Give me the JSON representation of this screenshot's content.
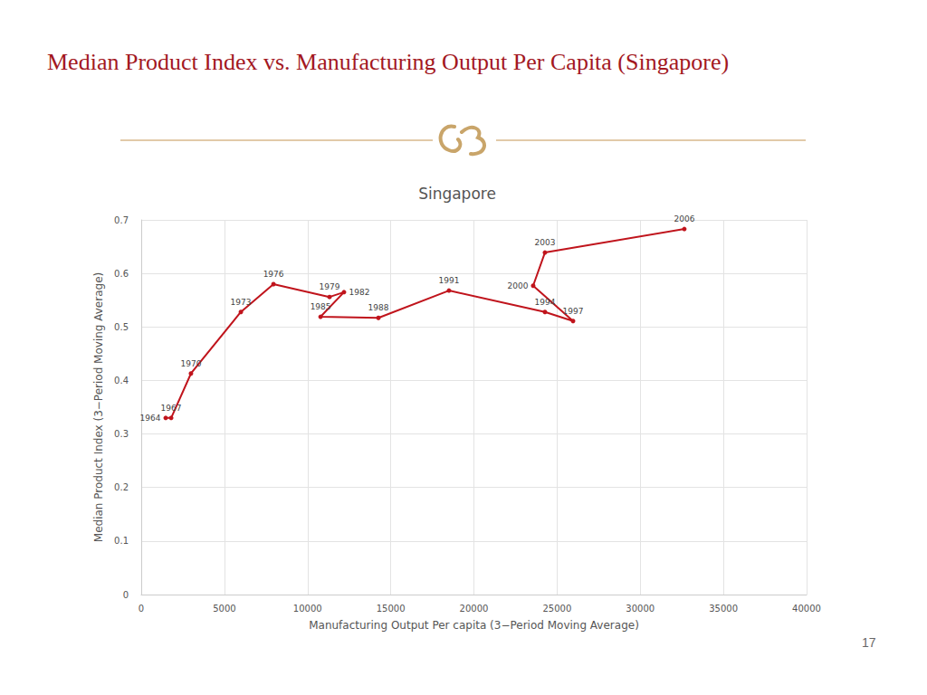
{
  "slide_title": "Median Product Index vs. Manufacturing Output Per Capita (Singapore)",
  "page_number": "17",
  "chart_data": {
    "type": "line",
    "title": "Singapore",
    "x_label": "Manufacturing Output Per capita (3−Period Moving Average)",
    "y_label": "Median Product Index (3−Period Moving Average)",
    "x": [
      1470,
      1800,
      2990,
      5990,
      7950,
      11320,
      12190,
      10780,
      14260,
      18500,
      24270,
      25960,
      23560,
      24270,
      32650
    ],
    "values": [
      0.33,
      0.33,
      0.413,
      0.528,
      0.58,
      0.556,
      0.565,
      0.519,
      0.517,
      0.568,
      0.528,
      0.511,
      0.577,
      0.639,
      0.683
    ],
    "point_labels": [
      "1964",
      "1967",
      "1970",
      "1973",
      "1976",
      "1979",
      "1982",
      "1985",
      "1988",
      "1991",
      "1994",
      "1997",
      "2000",
      "2003",
      "2006"
    ],
    "color": "#c0141c",
    "marker": "circle",
    "line_style": "solid",
    "xlim": [
      0,
      40000
    ],
    "xticks": [
      0,
      5000,
      10000,
      15000,
      20000,
      25000,
      30000,
      35000,
      40000
    ],
    "ylim": [
      0,
      0.7
    ],
    "yticks": [
      0,
      0.1,
      0.2,
      0.3,
      0.4,
      0.5,
      0.6,
      0.7
    ],
    "grid": true
  }
}
